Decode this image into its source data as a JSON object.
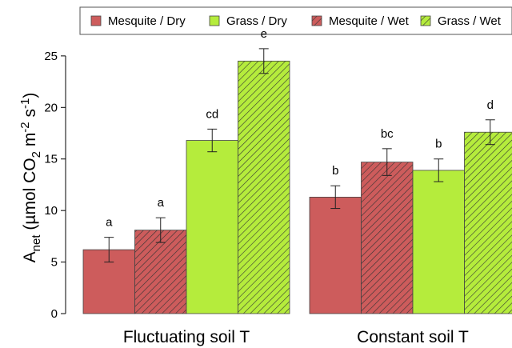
{
  "chart_data": {
    "type": "bar",
    "categories": [
      "Fluctuating soil T",
      "Constant soil T"
    ],
    "ylabel": {
      "main": "A",
      "main_sub": "net",
      "paren_open": " (µmol CO",
      "co2_sub": "2",
      "m": " m",
      "m_sup": "-2",
      "s": " s",
      "s_sup": "-1",
      "paren_close": ")"
    },
    "ylim": [
      0,
      26
    ],
    "yticks": [
      0,
      5,
      10,
      15,
      20,
      25
    ],
    "legend_position": "top",
    "series": [
      {
        "name": "Mesquite / Dry",
        "color": "#cd5c5c",
        "hatched": false,
        "values": [
          6.2,
          11.3
        ],
        "errors": [
          1.2,
          1.1
        ],
        "letters": [
          "a",
          "b"
        ]
      },
      {
        "name": "Mesquite / Wet",
        "color": "#cd5c5c",
        "hatched": true,
        "values": [
          8.1,
          14.7
        ],
        "errors": [
          1.2,
          1.3
        ],
        "letters": [
          "a",
          "bc"
        ]
      },
      {
        "name": "Grass / Dry",
        "color": "#b5ec3c",
        "hatched": false,
        "values": [
          16.8,
          13.9
        ],
        "errors": [
          1.1,
          1.1
        ],
        "letters": [
          "cd",
          "b"
        ]
      },
      {
        "name": "Grass / Wet",
        "color": "#b5ec3c",
        "hatched": true,
        "values": [
          24.5,
          17.6
        ],
        "errors": [
          1.2,
          1.2
        ],
        "letters": [
          "e",
          "d"
        ]
      }
    ],
    "legend_order": [
      0,
      2,
      1,
      3
    ]
  }
}
